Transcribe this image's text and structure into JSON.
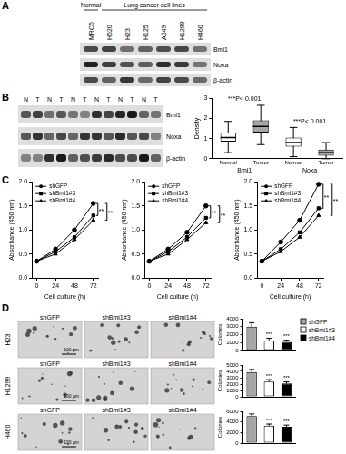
{
  "panel_labels": [
    "A",
    "B",
    "C",
    "D"
  ],
  "blot_a": {
    "groups": [
      {
        "label": "Normal",
        "lanes": [
          "MRC5"
        ]
      },
      {
        "label": "Lung cancer cell lines",
        "lanes": [
          "H520",
          "H23",
          "H125",
          "A549",
          "H1299",
          "H460"
        ]
      }
    ],
    "rows": [
      "Bmi1",
      "Noxa",
      "β-actin"
    ]
  },
  "blot_b": {
    "lanes": [
      "N",
      "T",
      "N",
      "T",
      "N",
      "T",
      "N",
      "T",
      "N",
      "T",
      "N",
      "T"
    ],
    "rows": [
      "Bmi1",
      "Noxa",
      "β-actin"
    ]
  },
  "micrographs": {
    "columns": [
      "shGFP",
      "shBmi1#3",
      "shBmi1#4"
    ],
    "rows": [
      "H23",
      "H1299",
      "H460"
    ],
    "scale_bar": "100 μm"
  },
  "chart_data": [
    {
      "type": "box",
      "y_label": "Density",
      "ylim": [
        0,
        3
      ],
      "yticks": [
        0,
        1,
        2,
        3
      ],
      "grid": false,
      "colors": [
        "#ffffff",
        "#a6a6a6"
      ],
      "groups": [
        {
          "label": "Bmi1",
          "annotation": "***P< 0.001",
          "categories": [
            "Normal",
            "Tumor"
          ],
          "boxes": [
            {
              "min": 0.3,
              "q1": 0.85,
              "median": 1.05,
              "q3": 1.3,
              "max": 1.85
            },
            {
              "min": 0.7,
              "q1": 1.3,
              "median": 1.6,
              "q3": 1.9,
              "max": 2.65
            }
          ]
        },
        {
          "label": "Noxa",
          "annotation": "***P< 0.001",
          "categories": [
            "Normal",
            "Tumor"
          ],
          "boxes": [
            {
              "min": 0.1,
              "q1": 0.6,
              "median": 0.8,
              "q3": 1.05,
              "max": 1.55
            },
            {
              "min": 0.0,
              "q1": 0.15,
              "median": 0.3,
              "q3": 0.45,
              "max": 0.8
            }
          ]
        }
      ]
    },
    {
      "type": "line",
      "x_label": "Cell culture (h)",
      "y_label": "Absorbance (450 nm)",
      "x": [
        0,
        24,
        48,
        72
      ],
      "xlim": [
        -6,
        78
      ],
      "xticks": [
        0,
        24,
        48,
        72
      ],
      "ylim": [
        0,
        2
      ],
      "yticks": [
        {
          "value": 0,
          "label": "0.0"
        },
        {
          "value": 0.5,
          "label": "0.5"
        },
        {
          "value": 1,
          "label": "1.0"
        },
        {
          "value": 1.5,
          "label": "1.5"
        },
        {
          "value": 2,
          "label": "2.0"
        }
      ],
      "grid": false,
      "legend": "top-left",
      "series": [
        {
          "name": "shGFP",
          "color": "#000000",
          "marker": "circle",
          "values": [
            0.35,
            0.6,
            1.0,
            1.55
          ]
        },
        {
          "name": "shBmi1#3",
          "color": "#000000",
          "marker": "rect",
          "values": [
            0.35,
            0.55,
            0.85,
            1.3
          ]
        },
        {
          "name": "shBmi1#4",
          "color": "#000000",
          "marker": "triangle",
          "values": [
            0.35,
            0.5,
            0.8,
            1.2
          ]
        }
      ],
      "annotations": [
        {
          "text": "**",
          "between": [
            "shGFP",
            "shBmi1#3"
          ]
        },
        {
          "text": "**",
          "between": [
            "shGFP",
            "shBmi1#4"
          ]
        }
      ]
    },
    {
      "type": "line",
      "x_label": "Cell culture (h)",
      "y_label": "Absorbance (450 nm)",
      "x": [
        0,
        24,
        48,
        72
      ],
      "xlim": [
        -6,
        78
      ],
      "xticks": [
        0,
        24,
        48,
        72
      ],
      "ylim": [
        0,
        2
      ],
      "yticks": [
        {
          "value": 0,
          "label": "0.0"
        },
        {
          "value": 0.5,
          "label": "0.5"
        },
        {
          "value": 1,
          "label": "1.0"
        },
        {
          "value": 1.5,
          "label": "1.5"
        },
        {
          "value": 2,
          "label": "2.0"
        }
      ],
      "grid": false,
      "legend": "top-left",
      "series": [
        {
          "name": "shGFP",
          "color": "#000000",
          "marker": "circle",
          "values": [
            0.35,
            0.6,
            0.95,
            1.5
          ]
        },
        {
          "name": "shBmi1#3",
          "color": "#000000",
          "marker": "rect",
          "values": [
            0.35,
            0.55,
            0.85,
            1.25
          ]
        },
        {
          "name": "shBmi1#4",
          "color": "#000000",
          "marker": "triangle",
          "values": [
            0.35,
            0.5,
            0.8,
            1.15
          ]
        }
      ],
      "annotations": [
        {
          "text": "**",
          "between": [
            "shGFP",
            "shBmi1#3"
          ]
        },
        {
          "text": "**",
          "between": [
            "shGFP",
            "shBmi1#4"
          ]
        }
      ]
    },
    {
      "type": "line",
      "x_label": "Cell culture (h)",
      "y_label": "Absorbance (450 nm)",
      "x": [
        0,
        24,
        48,
        72
      ],
      "xlim": [
        -6,
        78
      ],
      "xticks": [
        0,
        24,
        48,
        72
      ],
      "ylim": [
        0,
        2
      ],
      "yticks": [
        {
          "value": 0,
          "label": "0.0"
        },
        {
          "value": 0.5,
          "label": "0.5"
        },
        {
          "value": 1,
          "label": "1.0"
        },
        {
          "value": 1.5,
          "label": "1.5"
        },
        {
          "value": 2,
          "label": "2.0"
        }
      ],
      "grid": false,
      "legend": "top-left",
      "series": [
        {
          "name": "shGFP",
          "color": "#000000",
          "marker": "circle",
          "values": [
            0.35,
            0.75,
            1.2,
            1.95
          ]
        },
        {
          "name": "shBmi1#3",
          "color": "#000000",
          "marker": "rect",
          "values": [
            0.35,
            0.6,
            0.95,
            1.45
          ]
        },
        {
          "name": "shBmi1#4",
          "color": "#000000",
          "marker": "triangle",
          "values": [
            0.35,
            0.55,
            0.85,
            1.3
          ]
        }
      ],
      "annotations": [
        {
          "text": "**",
          "between": [
            "shGFP",
            "shBmi1#3"
          ]
        },
        {
          "text": "**",
          "between": [
            "shGFP",
            "shBmi1#4"
          ]
        }
      ]
    },
    {
      "type": "bar",
      "y_label": "Colonies",
      "categories": [
        "shGFP",
        "shBmi1#3",
        "shBmi1#4"
      ],
      "values": [
        3000,
        1300,
        1100
      ],
      "errors": [
        500,
        250,
        200
      ],
      "colors": [
        "#a6a6a6",
        "#ffffff",
        "#000000"
      ],
      "ylim": [
        0,
        4000
      ],
      "yticks": [
        0,
        1000,
        2000,
        3000,
        4000
      ],
      "grid": false,
      "tick_labels": "y",
      "legend": "top-right",
      "annotations": [
        {
          "category": "shBmi1#3",
          "text": "***"
        },
        {
          "category": "shBmi1#4",
          "text": "***"
        }
      ]
    },
    {
      "type": "bar",
      "y_label": "Colonies",
      "categories": [
        "shGFP",
        "shBmi1#3",
        "shBmi1#4"
      ],
      "values": [
        3900,
        2400,
        2100
      ],
      "errors": [
        400,
        300,
        250
      ],
      "colors": [
        "#a6a6a6",
        "#ffffff",
        "#000000"
      ],
      "ylim": [
        0,
        5000
      ],
      "yticks": [
        0,
        1000,
        2000,
        3000,
        4000,
        5000
      ],
      "grid": false,
      "tick_labels": "y",
      "annotations": [
        {
          "category": "shBmi1#3",
          "text": "***"
        },
        {
          "category": "shBmi1#4",
          "text": "***"
        }
      ]
    },
    {
      "type": "bar",
      "y_label": "Colonies",
      "categories": [
        "shGFP",
        "shBmi1#3",
        "shBmi1#4"
      ],
      "values": [
        5100,
        3300,
        3100
      ],
      "errors": [
        400,
        300,
        300
      ],
      "colors": [
        "#a6a6a6",
        "#ffffff",
        "#000000"
      ],
      "ylim": [
        0,
        6000
      ],
      "yticks": [
        0,
        2000,
        4000,
        6000
      ],
      "grid": false,
      "tick_labels": "y",
      "annotations": [
        {
          "category": "shBmi1#3",
          "text": "***"
        },
        {
          "category": "shBmi1#4",
          "text": "***"
        }
      ]
    }
  ]
}
